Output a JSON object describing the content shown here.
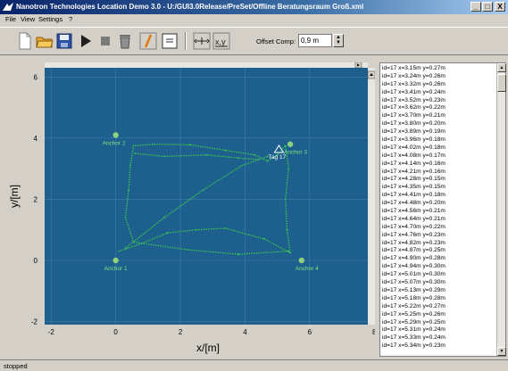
{
  "window": {
    "title": "Nanotron Technologies Location Demo 3.0 - U:/GUI3.0Release/PreSet/Offline Beratungsraum Groß.xml",
    "minimize": "_",
    "maximize": "□",
    "close": "X"
  },
  "menu": [
    "File",
    "View",
    "Settings",
    "?"
  ],
  "toolbar": {
    "offset_label": "Offset Comp:",
    "offset_value": "0,9 m"
  },
  "status": "stopped",
  "colors": {
    "plot_bg": "#1d5f8d",
    "track": "#3cc450",
    "anchor": "#8fcf7e",
    "label": "#7fe07f"
  },
  "log_lines": [
    "id=17 x=3.15m y=0.27m",
    "id=17 x=3.24m y=0.26m",
    "id=17 x=3.32m y=0.26m",
    "id=17 x=3.41m y=0.24m",
    "id=17 x=3.52m y=0.23m",
    "id=17 x=3.62m y=0.22m",
    "id=17 x=3.70m y=0.21m",
    "id=17 x=3.80m y=0.20m",
    "id=17 x=3.89m y=0.19m",
    "id=17 x=3.96m y=0.18m",
    "id=17 x=4.02m y=0.18m",
    "id=17 x=4.08m y=0.17m",
    "id=17 x=4.14m y=0.16m",
    "id=17 x=4.21m y=0.16m",
    "id=17 x=4.28m y=0.15m",
    "id=17 x=4.35m y=0.15m",
    "id=17 x=4.41m y=0.18m",
    "id=17 x=4.48m y=0.20m",
    "id=17 x=4.56m y=0.21m",
    "id=17 x=4.64m y=0.21m",
    "id=17 x=4.70m y=0.22m",
    "id=17 x=4.76m y=0.23m",
    "id=17 x=4.82m y=0.23m",
    "id=17 x=4.87m y=0.25m",
    "id=17 x=4.90m y=0.28m",
    "id=17 x=4.94m y=0.30m",
    "id=17 x=5.01m y=0.30m",
    "id=17 x=5.07m y=0.30m",
    "id=17 x=5.13m y=0.29m",
    "id=17 x=5.18m y=0.28m",
    "id=17 x=5.22m y=0.27m",
    "id=17 x=5.25m y=0.26m",
    "id=17 x=5.29m y=0.25m",
    "id=17 x=5.31m y=0.24m",
    "id=17 x=5.33m y=0.24m",
    "id=17 x=5.34m y=0.23m"
  ],
  "chart_data": {
    "type": "scatter",
    "xlabel": "x/[m]",
    "ylabel": "y/[m]",
    "xlim": [
      -2,
      8
    ],
    "ylim": [
      -2,
      6
    ],
    "xticks": [
      "-2",
      "0",
      "2",
      "4",
      "6",
      "8"
    ],
    "yticks": [
      "-2",
      "0",
      "2",
      "4",
      "6"
    ],
    "grid": true,
    "anchors": [
      {
        "name": "Anchor 1",
        "x": 0,
        "y": 0
      },
      {
        "name": "Anchor 2",
        "x": 0,
        "y": 4.1
      },
      {
        "name": "Anchor 3",
        "x": 5.4,
        "y": 3.8
      },
      {
        "name": "Anchor 4",
        "x": 5.75,
        "y": 0
      }
    ],
    "tag": {
      "name": "Tag 17",
      "x": 5.05,
      "y": 3.5
    },
    "track": [
      [
        5.35,
        0.3
      ],
      [
        3.8,
        0.2
      ],
      [
        2.2,
        0.35
      ],
      [
        0.55,
        0.6
      ],
      [
        0.3,
        1.4
      ],
      [
        0.4,
        2.3
      ],
      [
        0.45,
        3.1
      ],
      [
        0.55,
        3.75
      ],
      [
        1.2,
        3.8
      ],
      [
        2.3,
        3.78
      ],
      [
        3.4,
        3.6
      ],
      [
        4.3,
        3.45
      ],
      [
        4.7,
        3.25
      ],
      [
        5.0,
        3.45
      ],
      [
        5.25,
        3.75
      ],
      [
        5.35,
        3.0
      ],
      [
        5.25,
        2.0
      ],
      [
        5.3,
        1.0
      ],
      [
        5.4,
        0.25
      ],
      [
        4.6,
        0.7
      ],
      [
        3.4,
        1.05
      ],
      [
        2.5,
        1.0
      ],
      [
        1.6,
        0.9
      ],
      [
        0.8,
        0.55
      ],
      [
        0.1,
        0.3
      ]
    ],
    "track2": [
      [
        0.3,
        0.4
      ],
      [
        1.5,
        1.4
      ],
      [
        2.7,
        2.3
      ],
      [
        3.9,
        3.1
      ],
      [
        4.7,
        3.4
      ]
    ],
    "track3": [
      [
        0.6,
        3.5
      ],
      [
        1.5,
        3.4
      ],
      [
        2.8,
        3.45
      ],
      [
        3.8,
        3.35
      ],
      [
        4.4,
        3.3
      ]
    ]
  }
}
